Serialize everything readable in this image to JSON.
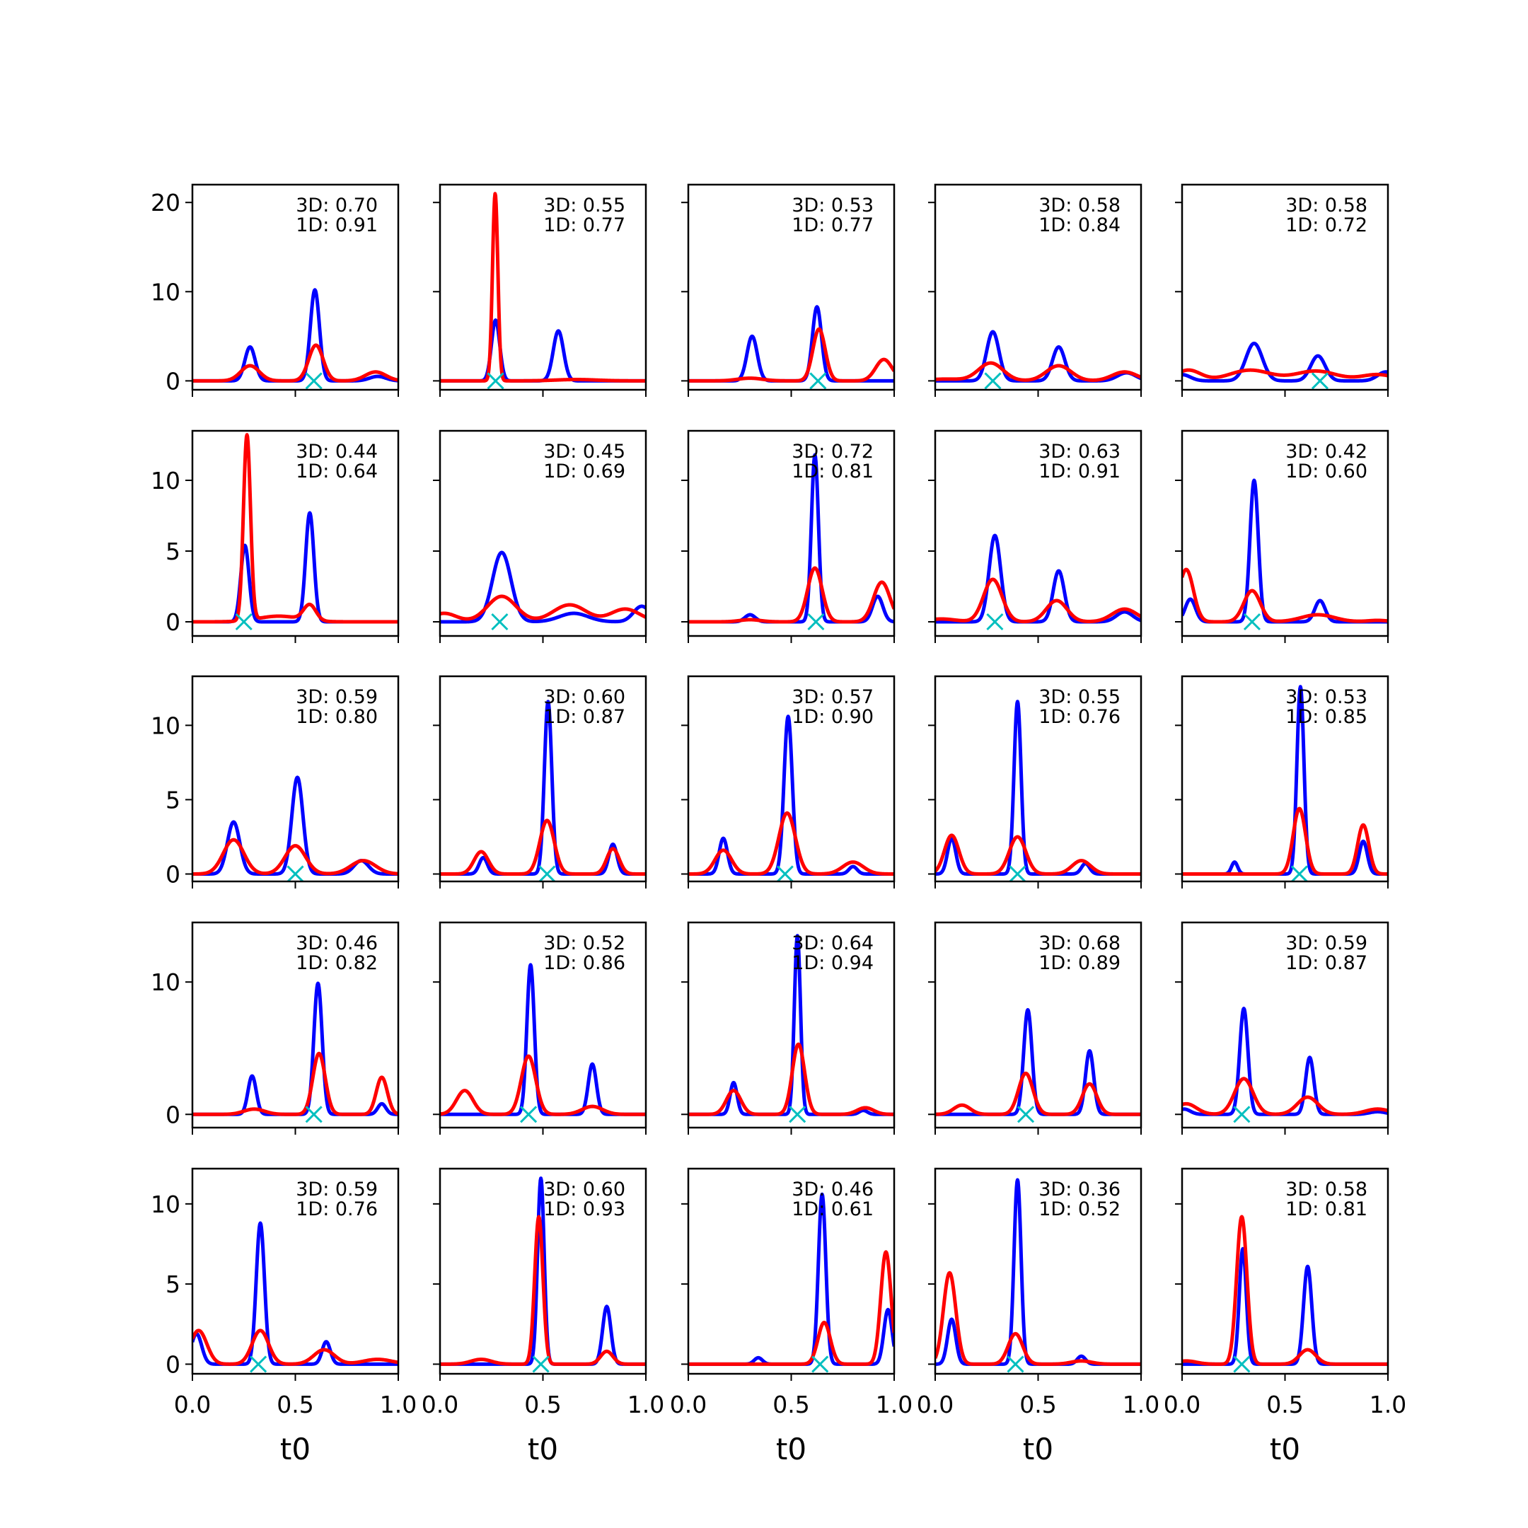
{
  "chart_data": {
    "type": "line",
    "layout": "5x5 small multiples",
    "series_colors": {
      "3D": "#0000ff",
      "1D": "#ff0000",
      "marker": "#00bfbf"
    },
    "xlim": [
      0,
      1
    ],
    "xticks": [
      "0.0",
      "0.5",
      "1.0"
    ],
    "xlabel": "t0",
    "row_yticks": [
      [
        "0",
        "10",
        "20"
      ],
      [
        "0",
        "5",
        "10"
      ],
      [
        "0",
        "5",
        "10"
      ],
      [
        "0",
        "10"
      ],
      [
        "0",
        "5",
        "10"
      ]
    ],
    "row_ylim": [
      [
        -1,
        22
      ],
      [
        -1,
        13.5
      ],
      [
        -0.5,
        13.3
      ],
      [
        -1,
        14.5
      ],
      [
        -0.6,
        12.2
      ]
    ],
    "panels": [
      {
        "row": 0,
        "col": 0,
        "score_3d": "3D: 0.70",
        "score_1d": "1D: 0.91",
        "marker_x": 0.59,
        "blue_peaks": [
          [
            0.28,
            3.8,
            0.025
          ],
          [
            0.595,
            10.2,
            0.022
          ],
          [
            0.9,
            0.5,
            0.04
          ]
        ],
        "red_peaks": [
          [
            0.28,
            1.7,
            0.045
          ],
          [
            0.6,
            4.0,
            0.035
          ],
          [
            0.89,
            1.0,
            0.05
          ]
        ]
      },
      {
        "row": 0,
        "col": 1,
        "score_3d": "3D: 0.55",
        "score_1d": "1D: 0.77",
        "marker_x": 0.27,
        "blue_peaks": [
          [
            0.27,
            6.8,
            0.02
          ],
          [
            0.575,
            5.6,
            0.025
          ]
        ],
        "red_peaks": [
          [
            0.268,
            21.0,
            0.013
          ],
          [
            0.66,
            0.15,
            0.1
          ]
        ]
      },
      {
        "row": 0,
        "col": 2,
        "score_3d": "3D: 0.53",
        "score_1d": "1D: 0.77",
        "marker_x": 0.63,
        "blue_peaks": [
          [
            0.31,
            5.0,
            0.025
          ],
          [
            0.625,
            8.3,
            0.022
          ]
        ],
        "red_peaks": [
          [
            0.3,
            0.3,
            0.06
          ],
          [
            0.635,
            5.8,
            0.03
          ],
          [
            0.95,
            2.4,
            0.04
          ]
        ]
      },
      {
        "row": 0,
        "col": 3,
        "score_3d": "3D: 0.58",
        "score_1d": "1D: 0.84",
        "marker_x": 0.28,
        "blue_peaks": [
          [
            0.28,
            5.5,
            0.03
          ],
          [
            0.6,
            3.8,
            0.03
          ],
          [
            0.93,
            0.9,
            0.045
          ]
        ],
        "red_peaks": [
          [
            0.05,
            0.2,
            0.08
          ],
          [
            0.27,
            2.0,
            0.06
          ],
          [
            0.6,
            1.7,
            0.06
          ],
          [
            0.92,
            1.0,
            0.06
          ]
        ]
      },
      {
        "row": 0,
        "col": 4,
        "score_3d": "3D: 0.58",
        "score_1d": "1D: 0.72",
        "marker_x": 0.67,
        "blue_peaks": [
          [
            0.0,
            0.7,
            0.04
          ],
          [
            0.35,
            4.2,
            0.04
          ],
          [
            0.66,
            2.8,
            0.035
          ],
          [
            0.99,
            1.0,
            0.04
          ]
        ],
        "red_peaks": [
          [
            0.03,
            1.2,
            0.06
          ],
          [
            0.33,
            1.2,
            0.1
          ],
          [
            0.65,
            1.1,
            0.1
          ],
          [
            0.95,
            0.7,
            0.08
          ]
        ]
      },
      {
        "row": 1,
        "col": 0,
        "score_3d": "3D: 0.44",
        "score_1d": "1D: 0.64",
        "marker_x": 0.25,
        "blue_peaks": [
          [
            0.255,
            5.4,
            0.02
          ],
          [
            0.57,
            7.7,
            0.02
          ]
        ],
        "red_peaks": [
          [
            0.265,
            13.1,
            0.017
          ],
          [
            0.42,
            0.4,
            0.1
          ],
          [
            0.57,
            1.1,
            0.03
          ]
        ]
      },
      {
        "row": 1,
        "col": 1,
        "score_3d": "3D: 0.45",
        "score_1d": "1D: 0.69",
        "marker_x": 0.29,
        "blue_peaks": [
          [
            0.3,
            4.9,
            0.045
          ],
          [
            0.65,
            0.6,
            0.07
          ],
          [
            0.98,
            1.1,
            0.04
          ]
        ],
        "red_peaks": [
          [
            0.02,
            0.6,
            0.06
          ],
          [
            0.3,
            1.8,
            0.07
          ],
          [
            0.63,
            1.2,
            0.08
          ],
          [
            0.9,
            0.9,
            0.07
          ]
        ]
      },
      {
        "row": 1,
        "col": 2,
        "score_3d": "3D: 0.72",
        "score_1d": "1D: 0.81",
        "marker_x": 0.62,
        "blue_peaks": [
          [
            0.3,
            0.5,
            0.025
          ],
          [
            0.615,
            11.8,
            0.017
          ],
          [
            0.92,
            1.8,
            0.025
          ]
        ],
        "red_peaks": [
          [
            0.3,
            0.15,
            0.05
          ],
          [
            0.615,
            3.8,
            0.035
          ],
          [
            0.94,
            2.8,
            0.04
          ]
        ]
      },
      {
        "row": 1,
        "col": 3,
        "score_3d": "3D: 0.63",
        "score_1d": "1D: 0.91",
        "marker_x": 0.29,
        "blue_peaks": [
          [
            0.29,
            6.1,
            0.028
          ],
          [
            0.6,
            3.6,
            0.027
          ],
          [
            0.92,
            0.7,
            0.04
          ]
        ],
        "red_peaks": [
          [
            0.03,
            0.2,
            0.07
          ],
          [
            0.28,
            3.0,
            0.045
          ],
          [
            0.59,
            1.5,
            0.05
          ],
          [
            0.92,
            0.9,
            0.06
          ]
        ]
      },
      {
        "row": 1,
        "col": 4,
        "score_3d": "3D: 0.42",
        "score_1d": "1D: 0.60",
        "marker_x": 0.34,
        "blue_peaks": [
          [
            0.04,
            1.6,
            0.025
          ],
          [
            0.35,
            10.0,
            0.02
          ],
          [
            0.67,
            1.5,
            0.025
          ]
        ],
        "red_peaks": [
          [
            0.02,
            3.7,
            0.035
          ],
          [
            0.34,
            2.2,
            0.04
          ],
          [
            0.66,
            0.5,
            0.08
          ],
          [
            0.95,
            0.1,
            0.05
          ]
        ]
      },
      {
        "row": 2,
        "col": 0,
        "score_3d": "3D: 0.59",
        "score_1d": "1D: 0.80",
        "marker_x": 0.5,
        "blue_peaks": [
          [
            0.2,
            3.5,
            0.03
          ],
          [
            0.51,
            6.5,
            0.027
          ],
          [
            0.82,
            0.9,
            0.035
          ]
        ],
        "red_peaks": [
          [
            0.2,
            2.3,
            0.05
          ],
          [
            0.5,
            1.9,
            0.05
          ],
          [
            0.83,
            0.9,
            0.06
          ]
        ]
      },
      {
        "row": 2,
        "col": 1,
        "score_3d": "3D: 0.60",
        "score_1d": "1D: 0.87",
        "marker_x": 0.52,
        "blue_peaks": [
          [
            0.21,
            1.1,
            0.02
          ],
          [
            0.525,
            11.6,
            0.018
          ],
          [
            0.84,
            2.0,
            0.02
          ]
        ],
        "red_peaks": [
          [
            0.2,
            1.5,
            0.035
          ],
          [
            0.52,
            3.6,
            0.035
          ],
          [
            0.84,
            1.7,
            0.03
          ]
        ]
      },
      {
        "row": 2,
        "col": 2,
        "score_3d": "3D: 0.57",
        "score_1d": "1D: 0.90",
        "marker_x": 0.47,
        "blue_peaks": [
          [
            0.17,
            2.4,
            0.02
          ],
          [
            0.485,
            10.6,
            0.02
          ],
          [
            0.8,
            0.5,
            0.02
          ]
        ],
        "red_peaks": [
          [
            0.17,
            1.6,
            0.04
          ],
          [
            0.48,
            4.1,
            0.04
          ],
          [
            0.8,
            0.8,
            0.05
          ]
        ]
      },
      {
        "row": 2,
        "col": 3,
        "score_3d": "3D: 0.55",
        "score_1d": "1D: 0.76",
        "marker_x": 0.4,
        "blue_peaks": [
          [
            0.08,
            2.4,
            0.02
          ],
          [
            0.4,
            11.6,
            0.017
          ],
          [
            0.73,
            0.7,
            0.02
          ]
        ],
        "red_peaks": [
          [
            0.08,
            2.6,
            0.035
          ],
          [
            0.4,
            2.5,
            0.04
          ],
          [
            0.71,
            0.9,
            0.045
          ]
        ]
      },
      {
        "row": 2,
        "col": 4,
        "score_3d": "3D: 0.53",
        "score_1d": "1D: 0.85",
        "marker_x": 0.57,
        "blue_peaks": [
          [
            0.255,
            0.8,
            0.015
          ],
          [
            0.575,
            12.6,
            0.017
          ],
          [
            0.88,
            2.2,
            0.02
          ]
        ],
        "red_peaks": [
          [
            0.57,
            4.4,
            0.03
          ],
          [
            0.88,
            3.3,
            0.027
          ]
        ]
      },
      {
        "row": 3,
        "col": 0,
        "score_3d": "3D: 0.46",
        "score_1d": "1D: 0.82",
        "marker_x": 0.59,
        "blue_peaks": [
          [
            0.29,
            2.9,
            0.02
          ],
          [
            0.61,
            9.9,
            0.02
          ],
          [
            0.92,
            0.8,
            0.02
          ]
        ],
        "red_peaks": [
          [
            0.3,
            0.4,
            0.05
          ],
          [
            0.615,
            4.6,
            0.03
          ],
          [
            0.92,
            2.8,
            0.027
          ]
        ]
      },
      {
        "row": 3,
        "col": 1,
        "score_3d": "3D: 0.52",
        "score_1d": "1D: 0.86",
        "marker_x": 0.43,
        "blue_peaks": [
          [
            0.44,
            11.3,
            0.018
          ],
          [
            0.74,
            3.8,
            0.02
          ]
        ],
        "red_peaks": [
          [
            0.12,
            1.8,
            0.04
          ],
          [
            0.43,
            4.4,
            0.035
          ],
          [
            0.74,
            0.6,
            0.05
          ]
        ]
      },
      {
        "row": 3,
        "col": 2,
        "score_3d": "3D: 0.64",
        "score_1d": "1D: 0.94",
        "marker_x": 0.53,
        "blue_peaks": [
          [
            0.22,
            2.4,
            0.017
          ],
          [
            0.53,
            13.5,
            0.015
          ],
          [
            0.85,
            0.3,
            0.02
          ]
        ],
        "red_peaks": [
          [
            0.22,
            1.8,
            0.035
          ],
          [
            0.535,
            5.3,
            0.03
          ],
          [
            0.86,
            0.5,
            0.04
          ]
        ]
      },
      {
        "row": 3,
        "col": 3,
        "score_3d": "3D: 0.68",
        "score_1d": "1D: 0.89",
        "marker_x": 0.44,
        "blue_peaks": [
          [
            0.45,
            7.9,
            0.02
          ],
          [
            0.75,
            4.8,
            0.02
          ]
        ],
        "red_peaks": [
          [
            0.13,
            0.7,
            0.04
          ],
          [
            0.44,
            3.1,
            0.035
          ],
          [
            0.75,
            2.3,
            0.035
          ]
        ]
      },
      {
        "row": 3,
        "col": 4,
        "score_3d": "3D: 0.59",
        "score_1d": "1D: 0.87",
        "marker_x": 0.29,
        "blue_peaks": [
          [
            0.01,
            0.4,
            0.03
          ],
          [
            0.3,
            8.0,
            0.02
          ],
          [
            0.62,
            4.3,
            0.02
          ],
          [
            0.95,
            0.2,
            0.04
          ]
        ],
        "red_peaks": [
          [
            0.02,
            0.8,
            0.05
          ],
          [
            0.3,
            2.7,
            0.045
          ],
          [
            0.61,
            1.3,
            0.05
          ],
          [
            0.95,
            0.4,
            0.06
          ]
        ]
      },
      {
        "row": 4,
        "col": 0,
        "score_3d": "3D: 0.59",
        "score_1d": "1D: 0.76",
        "marker_x": 0.32,
        "blue_peaks": [
          [
            0.02,
            1.9,
            0.025
          ],
          [
            0.33,
            8.8,
            0.02
          ],
          [
            0.65,
            1.4,
            0.02
          ]
        ],
        "red_peaks": [
          [
            0.03,
            2.1,
            0.04
          ],
          [
            0.33,
            2.1,
            0.04
          ],
          [
            0.64,
            0.9,
            0.05
          ],
          [
            0.9,
            0.3,
            0.07
          ]
        ]
      },
      {
        "row": 4,
        "col": 1,
        "score_3d": "3D: 0.60",
        "score_1d": "1D: 0.93",
        "marker_x": 0.49,
        "blue_peaks": [
          [
            0.49,
            11.6,
            0.016
          ],
          [
            0.81,
            3.6,
            0.02
          ]
        ],
        "red_peaks": [
          [
            0.2,
            0.3,
            0.05
          ],
          [
            0.48,
            9.2,
            0.02
          ],
          [
            0.81,
            0.8,
            0.03
          ]
        ]
      },
      {
        "row": 4,
        "col": 2,
        "score_3d": "3D: 0.46",
        "score_1d": "1D: 0.61",
        "marker_x": 0.64,
        "blue_peaks": [
          [
            0.34,
            0.4,
            0.02
          ],
          [
            0.65,
            10.6,
            0.018
          ],
          [
            0.97,
            3.4,
            0.02
          ]
        ],
        "red_peaks": [
          [
            0.66,
            2.6,
            0.03
          ],
          [
            0.96,
            7.0,
            0.025
          ]
        ]
      },
      {
        "row": 4,
        "col": 3,
        "score_3d": "3D: 0.36",
        "score_1d": "1D: 0.52",
        "marker_x": 0.39,
        "blue_peaks": [
          [
            0.08,
            2.8,
            0.02
          ],
          [
            0.4,
            11.5,
            0.017
          ],
          [
            0.71,
            0.5,
            0.02
          ]
        ],
        "red_peaks": [
          [
            0.07,
            5.7,
            0.03
          ],
          [
            0.39,
            1.9,
            0.035
          ],
          [
            0.71,
            0.2,
            0.05
          ]
        ]
      },
      {
        "row": 4,
        "col": 4,
        "score_3d": "3D: 0.58",
        "score_1d": "1D: 0.81",
        "marker_x": 0.29,
        "blue_peaks": [
          [
            0.295,
            7.2,
            0.017
          ],
          [
            0.61,
            6.1,
            0.02
          ]
        ],
        "red_peaks": [
          [
            0.02,
            0.2,
            0.05
          ],
          [
            0.29,
            9.2,
            0.025
          ],
          [
            0.61,
            0.9,
            0.04
          ]
        ]
      }
    ]
  }
}
